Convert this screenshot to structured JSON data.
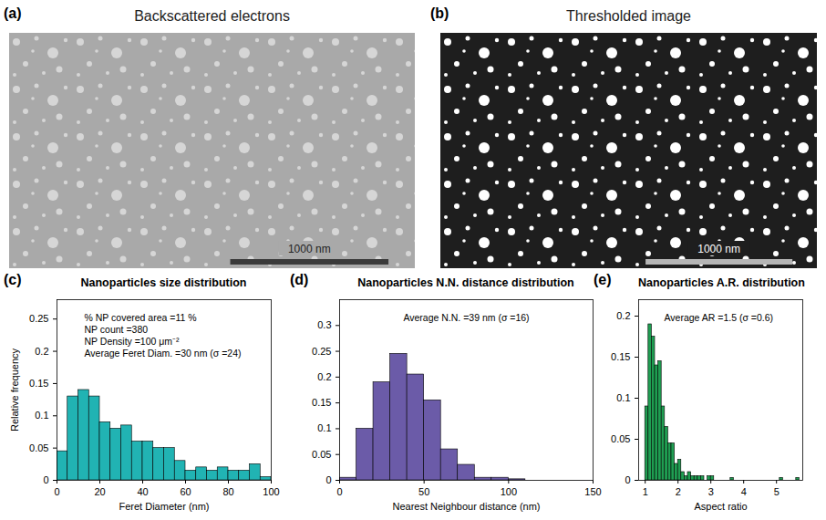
{
  "images": [
    {
      "panel": "(a)",
      "title": "Backscattered electrons",
      "scale_bar": "1000 nm"
    },
    {
      "panel": "(b)",
      "title": "Thresholded image",
      "scale_bar": "1000 nm"
    }
  ],
  "chart_data": [
    {
      "type": "histogram",
      "panel": "(c)",
      "title": "Nanoparticles size distribution",
      "x_label": "Feret Diameter (nm)",
      "y_label": "Relative frequency",
      "bins": [
        0,
        5,
        10,
        15,
        20,
        25,
        30,
        35,
        40,
        45,
        50,
        55,
        60,
        65,
        70,
        75,
        80,
        85,
        90,
        95,
        100
      ],
      "values": [
        0.045,
        0.13,
        0.14,
        0.13,
        0.09,
        0.08,
        0.085,
        0.06,
        0.06,
        0.05,
        0.05,
        0.03,
        0.015,
        0.02,
        0.015,
        0.02,
        0.015,
        0.015,
        0.025,
        0.005
      ],
      "color": "#21b3b3",
      "xlim": [
        0,
        100
      ],
      "xticks": [
        0,
        20,
        40,
        60,
        80,
        100
      ],
      "ylim": [
        0,
        0.28
      ],
      "yticks": [
        0,
        0.05,
        0.1,
        0.15,
        0.2,
        0.25
      ],
      "annotations": [
        "% NP covered area =11 %",
        "NP count =380",
        "NP Density =100 μm⁻²",
        "Average Feret Diam. =30 nm (σ =24)"
      ]
    },
    {
      "type": "histogram",
      "panel": "(d)",
      "title": "Nanoparticles N.N. distance distribution",
      "x_label": "Nearest Neighbour distance (nm)",
      "bins": [
        0,
        10,
        20,
        30,
        40,
        50,
        60,
        70,
        80,
        90,
        100,
        110
      ],
      "values": [
        0.005,
        0.1,
        0.19,
        0.245,
        0.205,
        0.155,
        0.06,
        0.03,
        0.005,
        0.005,
        0.002
      ],
      "color": "#6b5ba8",
      "xlim": [
        0,
        150
      ],
      "xticks": [
        0,
        50,
        100,
        150
      ],
      "ylim": [
        0,
        0.35
      ],
      "yticks": [
        0,
        0.05,
        0.1,
        0.15,
        0.2,
        0.25,
        0.3
      ],
      "annotations": [
        "Average N.N. =39 nm (σ =16)"
      ]
    },
    {
      "type": "histogram",
      "panel": "(e)",
      "title": "Nanoparticles A.R. distribution",
      "x_label": "Aspect ratio",
      "bins": [
        1,
        1.1,
        1.2,
        1.3,
        1.4,
        1.5,
        1.6,
        1.7,
        1.8,
        1.9,
        2,
        2.1,
        2.2,
        2.3,
        2.4,
        2.5,
        2.6,
        2.7,
        2.8,
        2.9,
        3,
        3.1,
        3.2,
        3.3,
        3.4,
        3.5,
        3.6,
        3.7,
        3.8,
        3.9,
        4,
        4.1,
        4.2,
        4.3,
        4.4,
        4.5,
        4.6,
        4.7,
        4.8,
        4.9,
        5,
        5.1,
        5.2,
        5.3,
        5.4,
        5.5,
        5.6,
        5.7
      ],
      "values": [
        0.09,
        0.19,
        0.175,
        0.14,
        0.145,
        0.09,
        0.065,
        0.045,
        0.045,
        0.02,
        0.025,
        0.01,
        0.005,
        0.01,
        0.005,
        0.005,
        0.005,
        0.005,
        0,
        0.005,
        0.005,
        0,
        0,
        0,
        0,
        0,
        0.003,
        0,
        0,
        0,
        0,
        0,
        0,
        0,
        0,
        0,
        0,
        0,
        0,
        0,
        0,
        0.003,
        0,
        0,
        0,
        0,
        0.003
      ],
      "color": "#1f9e52",
      "xlim": [
        0.8,
        5.8
      ],
      "xticks": [
        1,
        2,
        3,
        4,
        5
      ],
      "ylim": [
        0,
        0.22
      ],
      "yticks": [
        0,
        0.05,
        0.1,
        0.15,
        0.2
      ],
      "annotations": [
        "Average AR =1.5 (σ =0.6)"
      ]
    }
  ]
}
